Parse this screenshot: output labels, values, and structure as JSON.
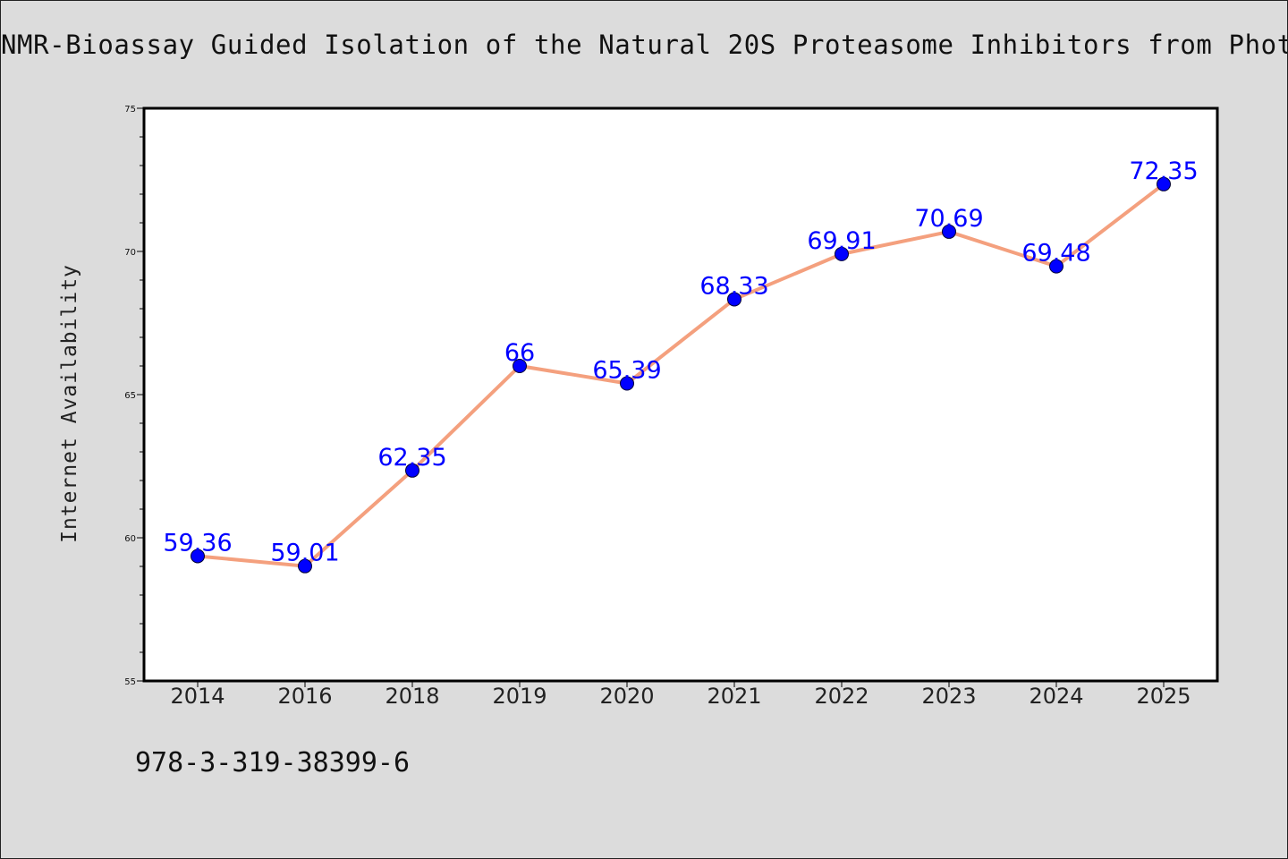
{
  "header": {
    "title": "NMR-Bioassay Guided Isolation of the Natural 20S Proteasome Inhibitors from Phot"
  },
  "footer": {
    "code": "978-3-319-38399-6"
  },
  "colors": {
    "background": "#dcdcdc",
    "plot_area": "#ffffff",
    "line": "#f4a07e",
    "marker": "#0000ff",
    "label": "#0000ff"
  },
  "chart_data": {
    "type": "line",
    "title": "NMR-Bioassay Guided Isolation of the Natural 20S Proteasome Inhibitors from Phot",
    "xlabel": "",
    "ylabel": "Internet Availability",
    "categories": [
      "2014",
      "2016",
      "2018",
      "2019",
      "2020",
      "2021",
      "2022",
      "2023",
      "2024",
      "2025"
    ],
    "series": [
      {
        "values": [
          59.36,
          59.01,
          62.35,
          66,
          65.39,
          68.33,
          69.91,
          70.69,
          69.48,
          72.35
        ],
        "labels": [
          "59.36",
          "59.01",
          "62.35",
          "66",
          "65.39",
          "68.33",
          "69.91",
          "70.69",
          "69.48",
          "72.35"
        ]
      }
    ],
    "ylim": [
      55,
      75
    ],
    "yticks": [
      55,
      60,
      65,
      70,
      75
    ],
    "grid": false,
    "legend": "none"
  }
}
